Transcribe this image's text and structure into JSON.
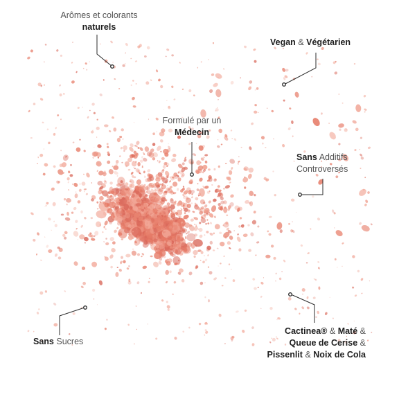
{
  "image": {
    "background": "#ffffff",
    "powder_color": "#e8826f",
    "powder_dark": "#d9685a",
    "line_color": "#2b2b2b"
  },
  "labels": {
    "aromes": {
      "line1": "Arômes et colorants",
      "line2": "naturels"
    },
    "vegan": {
      "bold1": "Vegan",
      "amp": "&",
      "bold2": "Végétarien"
    },
    "medecin": {
      "line1": "Formulé par un",
      "line2": "Médecin"
    },
    "additifs": {
      "bold": "Sans",
      "rest": "Additifs",
      "line2": "Controversés"
    },
    "sucres": {
      "bold": "Sans",
      "rest": "Sucres"
    },
    "ingredients": {
      "cactinea": "Cactinea®",
      "amp1": "&",
      "mate": "Maté",
      "amp2": "&",
      "cerise": "Queue de Cerise",
      "amp3": "&",
      "pissenlit": "Pissenlit",
      "amp4": "&",
      "cola": "Noix de Cola"
    }
  }
}
